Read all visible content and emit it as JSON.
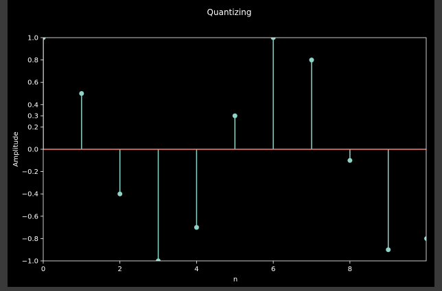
{
  "chart_data": {
    "type": "stem",
    "title": "Quantizing",
    "xlabel": "n",
    "ylabel": "Amplitude",
    "xlim": [
      0,
      9.99
    ],
    "ylim": [
      -1.0,
      1.0
    ],
    "x_ticks": [
      0,
      2,
      4,
      6,
      8
    ],
    "x_tick_labels": [
      "0",
      "2",
      "4",
      "6",
      "8"
    ],
    "y_ticks": [
      -1.0,
      -0.8,
      -0.6,
      -0.4,
      -0.2,
      0.0,
      0.2,
      0.3,
      0.4,
      0.6,
      0.8,
      1.0
    ],
    "y_tick_labels": [
      "−1.0",
      "−0.8",
      "−0.6",
      "−0.4",
      "−0.2",
      "0.0",
      "0.2",
      "0.3",
      "0.4",
      "0.6",
      "0.8",
      "1.0"
    ],
    "x": [
      0,
      1,
      2,
      3,
      4,
      5,
      6,
      7,
      8,
      9,
      10
    ],
    "values": [
      1.0,
      0.5,
      -0.4,
      -1.0,
      -0.7,
      0.3,
      1.0,
      0.8,
      -0.1,
      -0.9,
      -0.8
    ],
    "grid": false,
    "colors": {
      "stem": "#8dd3c7",
      "baseline": "#fa8174",
      "axes": "#ffffff",
      "background": "#000000"
    }
  }
}
